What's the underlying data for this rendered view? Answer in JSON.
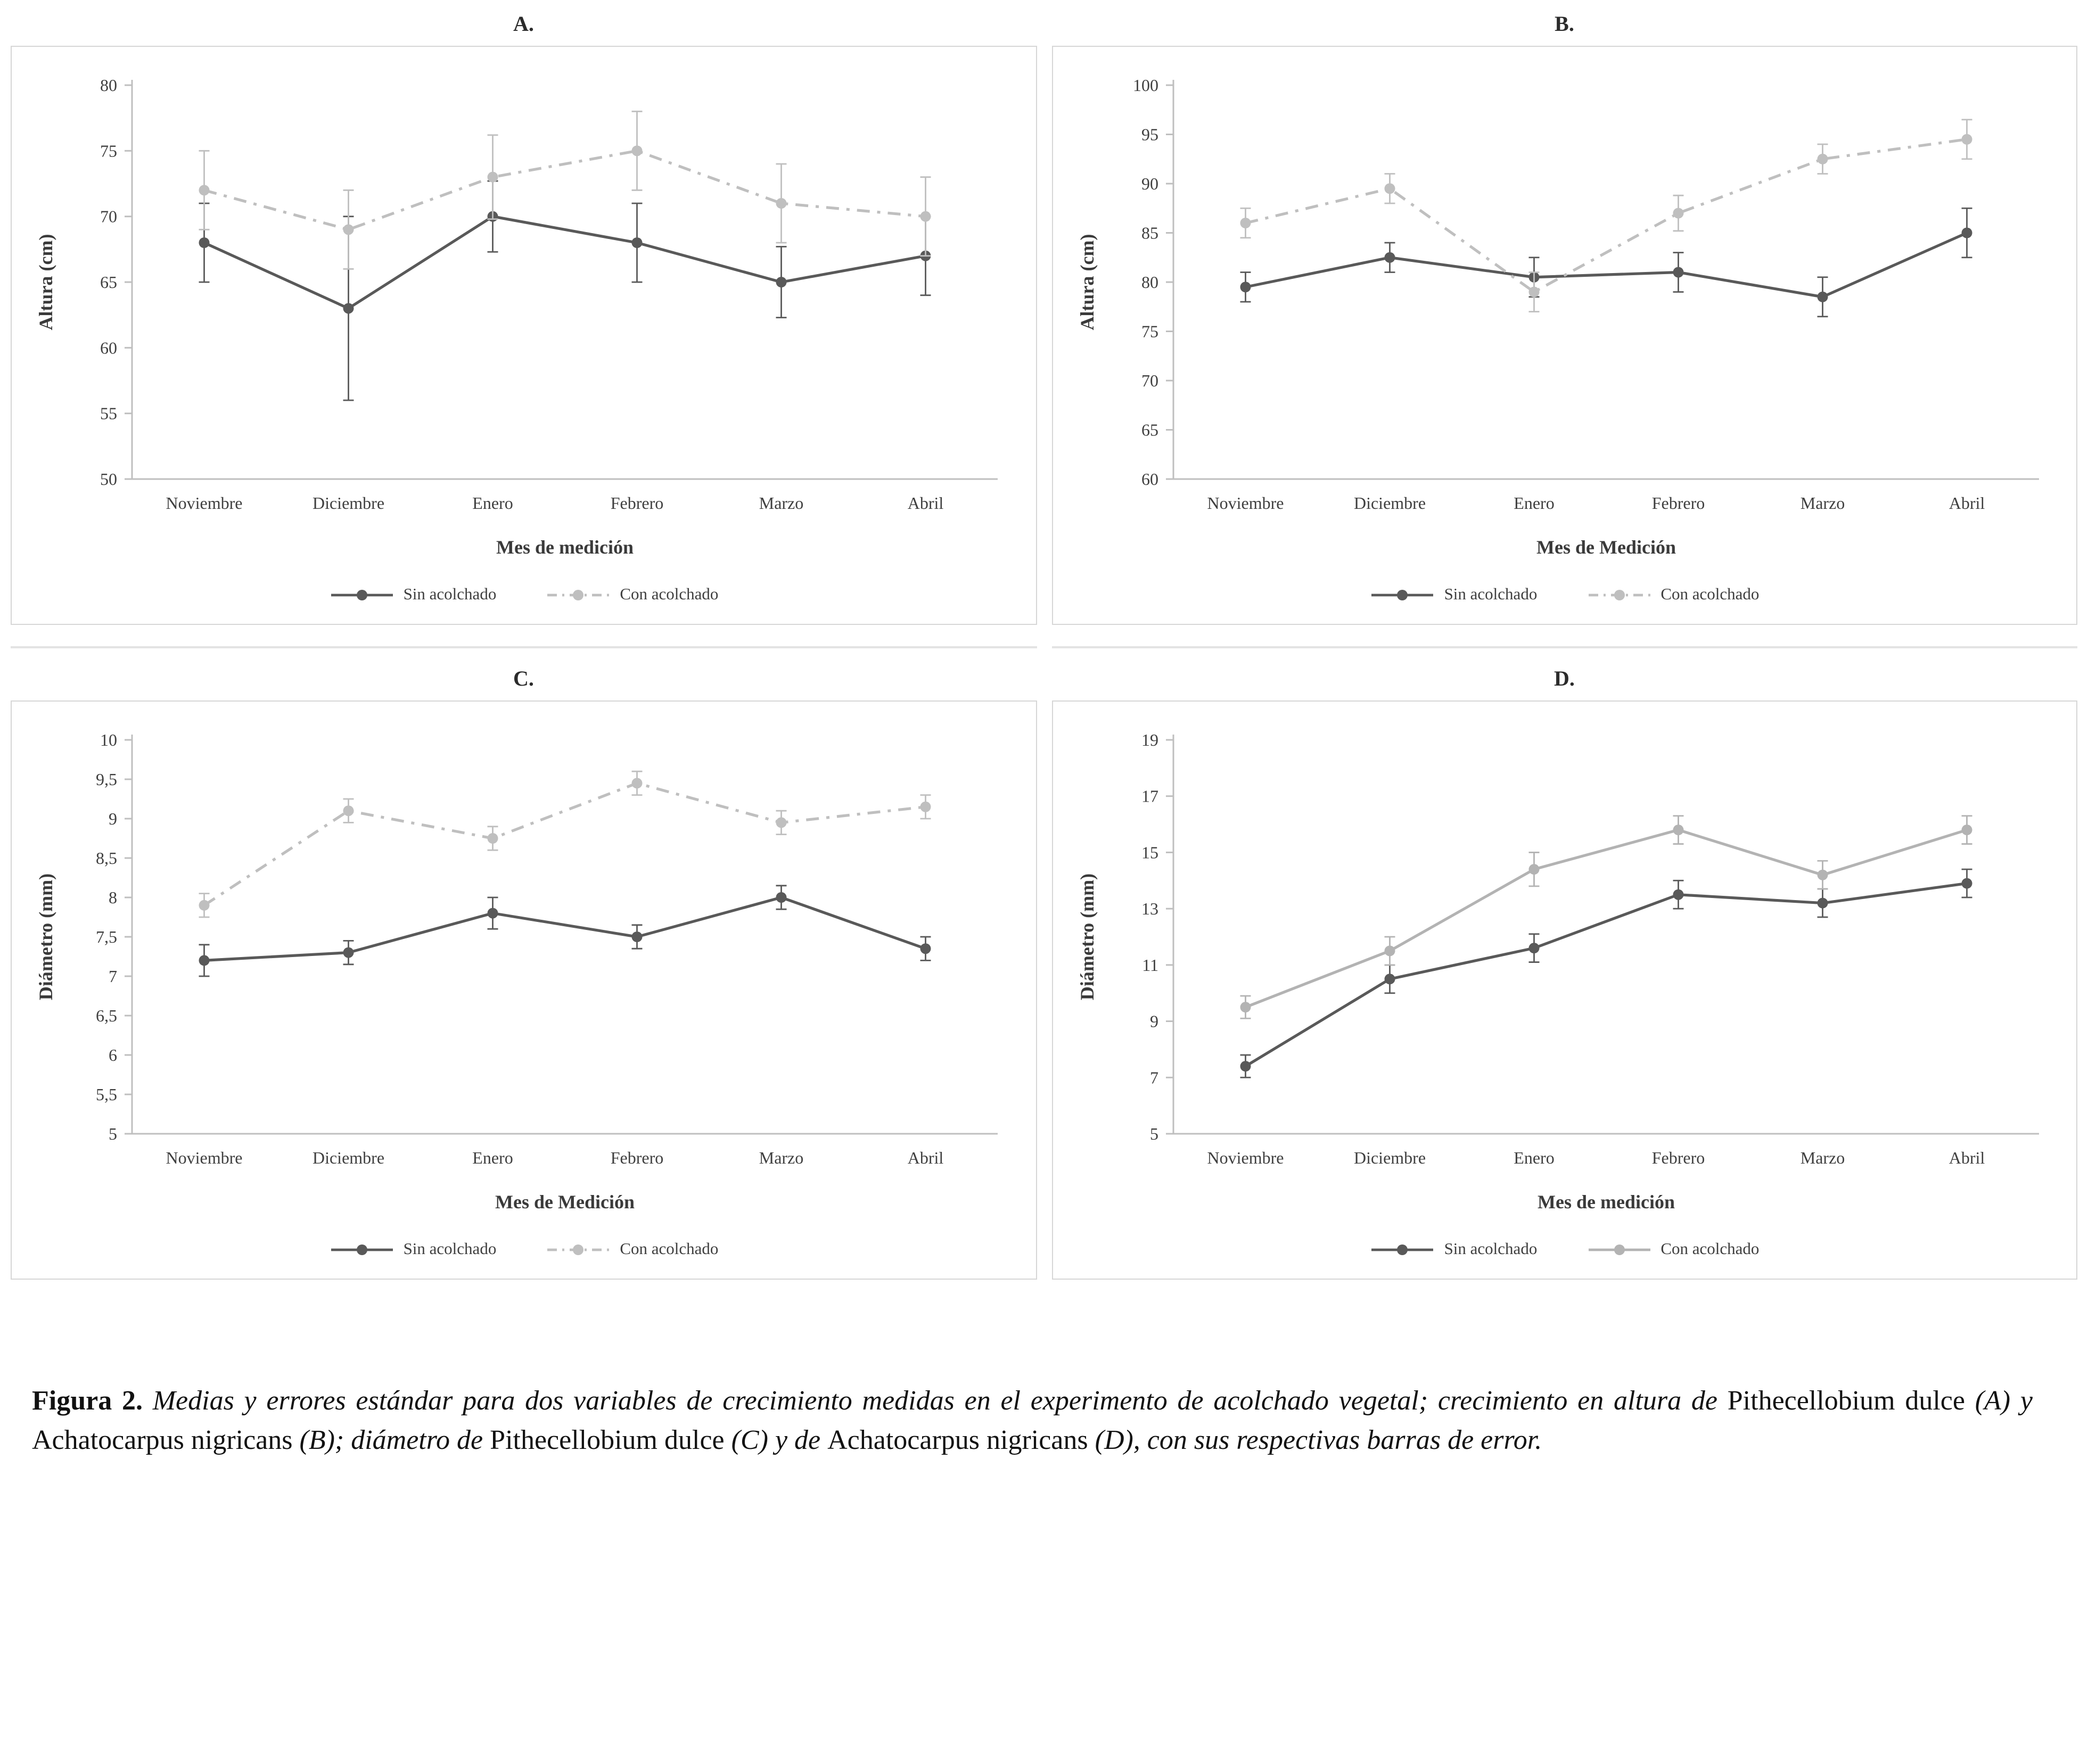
{
  "colors": {
    "axis": "#bfbfbf",
    "tick_text": "#3f3f3f",
    "dark_series": "#595959",
    "light_series": "#bfbfbf",
    "panel_border": "#d6d6d6"
  },
  "chart_data": [
    {
      "type": "line",
      "panel_label": "A.",
      "ylabel": "Altura (cm)",
      "xlabel": "Mes de medición",
      "categories": [
        "Noviembre",
        "Diciembre",
        "Enero",
        "Febrero",
        "Marzo",
        "Abril"
      ],
      "ylim": [
        50,
        80
      ],
      "yticks": [
        50,
        55,
        60,
        65,
        70,
        75,
        80
      ],
      "ytick_labels": [
        "50",
        "55",
        "60",
        "65",
        "70",
        "75",
        "80"
      ],
      "grid": false,
      "legend_position": "bottom",
      "series": [
        {
          "name": "Sin acolchado",
          "color": "#595959",
          "dash": "solid",
          "values": [
            68,
            63,
            70,
            68,
            65,
            67
          ],
          "errors": [
            3,
            7,
            2.7,
            3,
            2.7,
            3
          ]
        },
        {
          "name": "Con acolchado",
          "color": "#bfbfbf",
          "dash": "dashdot",
          "values": [
            72,
            69,
            73,
            75,
            71,
            70
          ],
          "errors": [
            3,
            3,
            3.2,
            3,
            3,
            3
          ]
        }
      ]
    },
    {
      "type": "line",
      "panel_label": "B.",
      "ylabel": "Altura (cm)",
      "xlabel": "Mes de Medición",
      "categories": [
        "Noviembre",
        "Diciembre",
        "Enero",
        "Febrero",
        "Marzo",
        "Abril"
      ],
      "ylim": [
        60,
        100
      ],
      "yticks": [
        60,
        65,
        70,
        75,
        80,
        85,
        90,
        95,
        100
      ],
      "ytick_labels": [
        "60",
        "65",
        "70",
        "75",
        "80",
        "85",
        "90",
        "95",
        "100"
      ],
      "grid": false,
      "legend_position": "bottom",
      "series": [
        {
          "name": "Sin acolchado",
          "color": "#595959",
          "dash": "solid",
          "values": [
            79.5,
            82.5,
            80.5,
            81,
            78.5,
            85
          ],
          "errors": [
            1.5,
            1.5,
            2,
            2,
            2,
            2.5
          ]
        },
        {
          "name": "Con acolchado",
          "color": "#bfbfbf",
          "dash": "dashdot",
          "values": [
            86,
            89.5,
            79,
            87,
            92.5,
            94.5
          ],
          "errors": [
            1.5,
            1.5,
            2,
            1.8,
            1.5,
            2
          ]
        }
      ]
    },
    {
      "type": "line",
      "panel_label": "C.",
      "ylabel": "Diámetro (mm)",
      "xlabel": "Mes de Medición",
      "categories": [
        "Noviembre",
        "Diciembre",
        "Enero",
        "Febrero",
        "Marzo",
        "Abril"
      ],
      "ylim": [
        5,
        10
      ],
      "yticks": [
        5,
        5.5,
        6,
        6.5,
        7,
        7.5,
        8,
        8.5,
        9,
        9.5,
        10
      ],
      "ytick_labels": [
        "5",
        "5,5",
        "6",
        "6,5",
        "7",
        "7,5",
        "8",
        "8,5",
        "9",
        "9,5",
        "10"
      ],
      "grid": false,
      "legend_position": "bottom",
      "series": [
        {
          "name": "Sin acolchado",
          "color": "#595959",
          "dash": "solid",
          "values": [
            7.2,
            7.3,
            7.8,
            7.5,
            8.0,
            7.35
          ],
          "errors": [
            0.2,
            0.15,
            0.2,
            0.15,
            0.15,
            0.15
          ]
        },
        {
          "name": "Con acolchado",
          "color": "#bfbfbf",
          "dash": "dashdot",
          "values": [
            7.9,
            9.1,
            8.75,
            9.45,
            8.95,
            9.15
          ],
          "errors": [
            0.15,
            0.15,
            0.15,
            0.15,
            0.15,
            0.15
          ]
        }
      ]
    },
    {
      "type": "line",
      "panel_label": "D.",
      "ylabel": "Diámetro (mm)",
      "xlabel": "Mes de medición",
      "categories": [
        "Noviembre",
        "Diciembre",
        "Enero",
        "Febrero",
        "Marzo",
        "Abril"
      ],
      "ylim": [
        5,
        19
      ],
      "yticks": [
        5,
        7,
        9,
        11,
        13,
        15,
        17,
        19
      ],
      "ytick_labels": [
        "5",
        "7",
        "9",
        "11",
        "13",
        "15",
        "17",
        "19"
      ],
      "grid": false,
      "legend_position": "bottom",
      "series": [
        {
          "name": "Sin acolchado",
          "color": "#595959",
          "dash": "solid",
          "values": [
            7.4,
            10.5,
            11.6,
            13.5,
            13.2,
            13.9
          ],
          "errors": [
            0.4,
            0.5,
            0.5,
            0.5,
            0.5,
            0.5
          ]
        },
        {
          "name": "Con acolchado",
          "color": "#b3b3b3",
          "dash": "solid",
          "values": [
            9.5,
            11.5,
            14.4,
            15.8,
            14.2,
            15.8
          ],
          "errors": [
            0.4,
            0.5,
            0.6,
            0.5,
            0.5,
            0.5
          ]
        }
      ]
    }
  ],
  "caption": {
    "segments": [
      {
        "text": "Figura 2.",
        "bold": true,
        "italic": false
      },
      {
        "text": "  Medias y errores estándar para dos variables de crecimiento medidas en el experimento de acolchado vegetal; crecimiento en altura de ",
        "bold": false,
        "italic": true
      },
      {
        "text": "Pithecellobium dulce ",
        "bold": false,
        "italic": false
      },
      {
        "text": "(A) y ",
        "bold": false,
        "italic": true
      },
      {
        "text": "Achatocarpus nigricans ",
        "bold": false,
        "italic": false
      },
      {
        "text": "(B); diámetro de ",
        "bold": false,
        "italic": true
      },
      {
        "text": "Pithecellobium dulce ",
        "bold": false,
        "italic": false
      },
      {
        "text": "(C) y de ",
        "bold": false,
        "italic": true
      },
      {
        "text": "Achatocarpus nigricans ",
        "bold": false,
        "italic": false
      },
      {
        "text": "(D), con sus respectivas barras de error.",
        "bold": false,
        "italic": true
      }
    ]
  }
}
